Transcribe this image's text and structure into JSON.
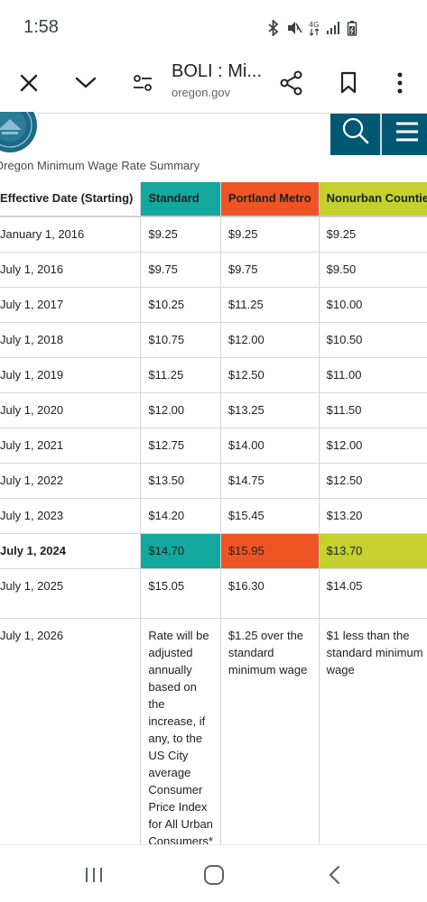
{
  "status_bar": {
    "time": "1:58",
    "icons": [
      "bluetooth-icon",
      "mute-icon",
      "data-4g-icon",
      "signal-icon",
      "battery-icon"
    ]
  },
  "toolbar": {
    "page_title": "BOLI : Mi...",
    "domain": "oregon.gov",
    "icons": [
      "close-icon",
      "chevron-down-icon",
      "page-settings-icon",
      "share-icon",
      "bookmark-icon",
      "more-options-icon"
    ]
  },
  "page": {
    "subtitle": "Oregon Minimum Wage Rate Summary",
    "header_icons": [
      "oregon-seal-logo",
      "search-icon",
      "menu-icon"
    ],
    "brand_color": "#005873"
  },
  "table": {
    "headers": {
      "date": "Effective Date (Starting)",
      "standard": "Standard",
      "portland": "Portland Metro",
      "nonurban": "Nonurban Counties"
    },
    "colors": {
      "standard": "#12a89d",
      "portland": "#ef5524",
      "nonurban": "#c5d12e"
    },
    "rows": [
      {
        "date": "January 1, 2016",
        "standard": "$9.25",
        "portland": "$9.25",
        "nonurban": "$9.25"
      },
      {
        "date": "July 1, 2016",
        "standard": "$9.75",
        "portland": "$9.75",
        "nonurban": "$9.50"
      },
      {
        "date": "July 1, 2017",
        "standard": "$10.25",
        "portland": "$11.25",
        "nonurban": "$10.00"
      },
      {
        "date": "July 1, 2018",
        "standard": "$10.75",
        "portland": "$12.00",
        "nonurban": "$10.50"
      },
      {
        "date": "July 1, 2019",
        "standard": "$11.25",
        "portland": "$12.50",
        "nonurban": "$11.00"
      },
      {
        "date": "July 1, 2020",
        "standard": "$12.00",
        "portland": "$13.25",
        "nonurban": "$11.50"
      },
      {
        "date": "July 1, 2021",
        "standard": "$12.75",
        "portland": "$14.00",
        "nonurban": "$12.00"
      },
      {
        "date": "July 1, 2022",
        "standard": "$13.50",
        "portland": "$14.75",
        "nonurban": "$12.50"
      },
      {
        "date": "July 1, 2023",
        "standard": "$14.20",
        "portland": "$15.45",
        "nonurban": "$13.20"
      },
      {
        "date": "July 1, 2024",
        "standard": "$14.70",
        "portland": "$15.95",
        "nonurban": "$13.70"
      },
      {
        "date": "July 1, 2025",
        "standard": "$15.05",
        "portland": "$16.30",
        "nonurban": "$14.05"
      },
      {
        "date": "July 1, 2026",
        "standard": "Rate will be adjusted annually based on the increase, if any, to the US City average Consumer Price Index for All Urban Consumers*",
        "portland": "$1.25 over the standard minimum wage",
        "nonurban": "$1 less than the standard minimum wage"
      }
    ]
  },
  "nav_bar": {
    "icons": [
      "recent-apps-icon",
      "home-icon",
      "back-icon"
    ]
  }
}
